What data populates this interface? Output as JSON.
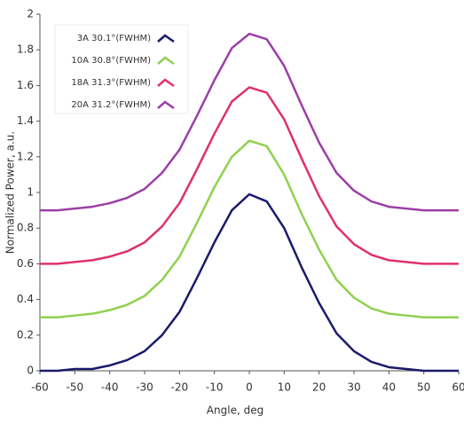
{
  "chart_data": {
    "type": "line",
    "x_label": "Angle, deg",
    "y_label": "Normalized Power, a.u.",
    "x": [
      -60,
      -55,
      -50,
      -45,
      -40,
      -35,
      -30,
      -25,
      -20,
      -15,
      -10,
      -5,
      0,
      5,
      10,
      15,
      20,
      25,
      30,
      35,
      40,
      45,
      50,
      55,
      60
    ],
    "series": [
      {
        "name": "3A 30.1°(FWHM)",
        "color": "#1b1a6b",
        "values": [
          0.0,
          0.0,
          0.01,
          0.01,
          0.03,
          0.06,
          0.11,
          0.2,
          0.33,
          0.52,
          0.72,
          0.9,
          0.99,
          0.95,
          0.8,
          0.58,
          0.38,
          0.21,
          0.11,
          0.05,
          0.02,
          0.01,
          0.0,
          0.0,
          0.0
        ]
      },
      {
        "name": "10A 30.8°(FWHM)",
        "color": "#8fd14f",
        "values": [
          0.3,
          0.3,
          0.31,
          0.32,
          0.34,
          0.37,
          0.42,
          0.51,
          0.64,
          0.83,
          1.03,
          1.2,
          1.29,
          1.26,
          1.1,
          0.88,
          0.68,
          0.51,
          0.41,
          0.35,
          0.32,
          0.31,
          0.3,
          0.3,
          0.3
        ]
      },
      {
        "name": "18A 31.3°(FWHM)",
        "color": "#e0306e",
        "values": [
          0.6,
          0.6,
          0.61,
          0.62,
          0.64,
          0.67,
          0.72,
          0.81,
          0.94,
          1.13,
          1.33,
          1.51,
          1.59,
          1.56,
          1.41,
          1.19,
          0.98,
          0.81,
          0.71,
          0.65,
          0.62,
          0.61,
          0.6,
          0.6,
          0.6
        ]
      },
      {
        "name": "20A 31.2°(FWHM)",
        "color": "#9b3fa6",
        "values": [
          0.9,
          0.9,
          0.91,
          0.92,
          0.94,
          0.97,
          1.02,
          1.11,
          1.24,
          1.43,
          1.63,
          1.81,
          1.89,
          1.86,
          1.71,
          1.49,
          1.28,
          1.11,
          1.01,
          0.95,
          0.92,
          0.91,
          0.9,
          0.9,
          0.9
        ]
      }
    ],
    "xlim": [
      -60,
      60
    ],
    "xticks": [
      -60,
      -50,
      -40,
      -30,
      -20,
      -10,
      0,
      10,
      20,
      30,
      40,
      50,
      60
    ],
    "ylim": [
      0,
      2
    ],
    "yticks": [
      0,
      0.2,
      0.4,
      0.6,
      0.8,
      1,
      1.2,
      1.4,
      1.6,
      1.8,
      2
    ],
    "legend": "upper left",
    "grid": false
  }
}
